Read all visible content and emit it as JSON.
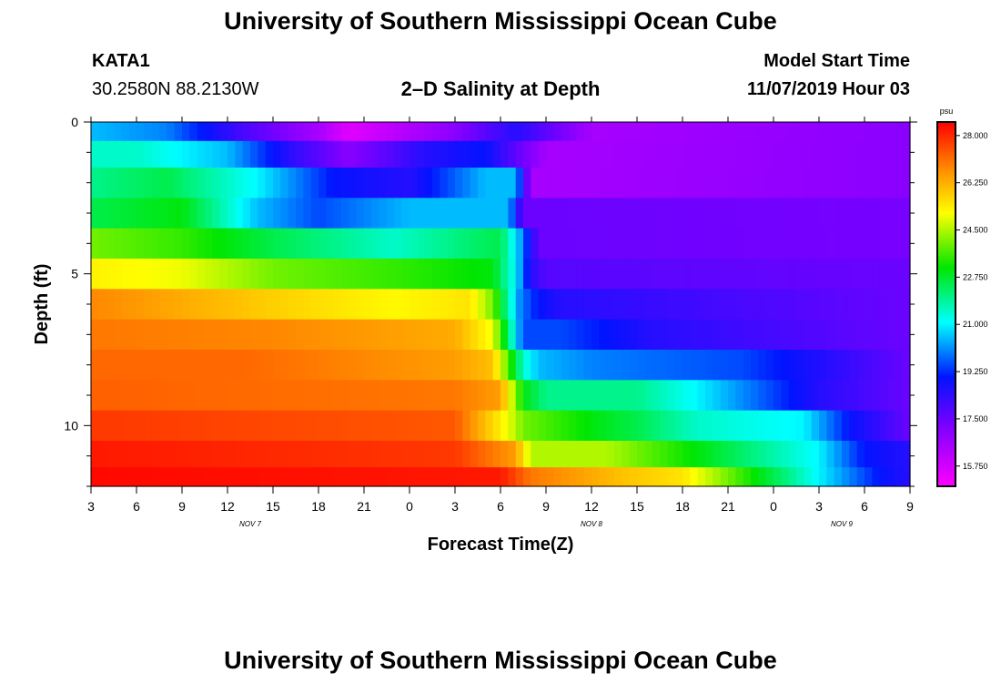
{
  "header": {
    "title": "University of Southern Mississippi Ocean Cube",
    "station": "KATA1",
    "coords": "30.2580N 88.2130W",
    "plot_title": "2–D Salinity at Depth",
    "start_label": "Model Start Time",
    "start_value": "11/07/2019 Hour 03"
  },
  "footer": {
    "title": "University of Southern Mississippi Ocean Cube"
  },
  "chart_data": {
    "type": "heatmap",
    "title": "2–D Salinity at Depth",
    "xlabel": "Forecast Time(Z)",
    "ylabel": "Depth (ft)",
    "x_range_hours": [
      0,
      54
    ],
    "x_tick_labels": [
      "3",
      "6",
      "9",
      "12",
      "15",
      "18",
      "21",
      "0",
      "3",
      "6",
      "9",
      "12",
      "15",
      "18",
      "21",
      "0",
      "3",
      "6",
      "9"
    ],
    "x_date_labels": [
      {
        "label": "NOV 7",
        "hour": 10.5
      },
      {
        "label": "NOV 8",
        "hour": 33
      },
      {
        "label": "NOV 9",
        "hour": 49.5
      }
    ],
    "y_range_ft": [
      0,
      12
    ],
    "y_tick_labels": [
      "0",
      "5",
      "10"
    ],
    "y_ticks_ft": [
      0,
      5,
      10
    ],
    "layer_depths_ft": [
      0.25,
      1,
      2,
      3,
      4,
      5,
      6,
      7,
      8,
      9,
      10,
      11,
      11.75
    ],
    "colorbar": {
      "unit": "psu",
      "min": 15.0,
      "max": 28.5,
      "tick_labels": [
        "28.000",
        "26.250",
        "24.500",
        "22.750",
        "21.000",
        "19.250",
        "17.500",
        "15.750"
      ],
      "tick_values": [
        28.0,
        26.25,
        24.5,
        22.75,
        21.0,
        19.25,
        17.5,
        15.75
      ]
    },
    "series": [
      {
        "name": "0.25 ft",
        "hours": [
          0,
          5,
          10,
          15,
          17,
          24,
          28,
          33,
          54
        ],
        "values": [
          20.5,
          20.0,
          18.0,
          16.5,
          15.5,
          17.0,
          18.5,
          16.5,
          17.0
        ]
      },
      {
        "name": "1 ft",
        "hours": [
          0,
          3,
          9,
          13,
          17,
          22,
          26,
          27.5,
          30,
          54
        ],
        "values": [
          21.5,
          21.5,
          20.5,
          18.5,
          17.0,
          18.5,
          19.0,
          18.0,
          16.5,
          17.0
        ]
      },
      {
        "name": "2 ft",
        "hours": [
          0,
          5,
          11,
          16,
          21,
          26,
          28,
          29,
          54
        ],
        "values": [
          22.0,
          22.5,
          21.0,
          19.0,
          18.5,
          20.5,
          20.5,
          16.5,
          17.0
        ]
      },
      {
        "name": "3 ft",
        "hours": [
          0,
          6,
          11,
          15,
          21,
          27.5,
          28.5,
          54
        ],
        "values": [
          22.5,
          23.0,
          20.5,
          19.5,
          20.5,
          20.5,
          17.5,
          17.3
        ]
      },
      {
        "name": "4 ft",
        "hours": [
          0,
          6,
          12,
          20,
          27,
          28.2,
          29.5,
          54
        ],
        "values": [
          24.0,
          23.5,
          22.5,
          21.5,
          22.5,
          20.5,
          17.5,
          17.3
        ]
      },
      {
        "name": "5 ft",
        "hours": [
          0,
          6,
          12,
          20,
          26.5,
          28,
          29,
          30,
          54
        ],
        "values": [
          25.3,
          25.0,
          24.0,
          23.5,
          23.0,
          21.0,
          18.5,
          17.8,
          17.5
        ]
      },
      {
        "name": "6 ft",
        "hours": [
          0,
          12,
          20,
          25,
          26.5,
          28.3,
          29.5,
          31,
          54
        ],
        "values": [
          26.8,
          25.8,
          25.2,
          25.5,
          24.0,
          20.0,
          19.0,
          18.5,
          17.5
        ]
      },
      {
        "name": "7 ft",
        "hours": [
          0,
          12,
          24,
          26.5,
          28.5,
          31,
          37,
          54
        ],
        "values": [
          27.0,
          26.8,
          26.3,
          25.0,
          19.5,
          19.5,
          18.5,
          17.5
        ]
      },
      {
        "name": "8 ft",
        "hours": [
          0,
          10,
          24,
          26.5,
          28.5,
          29.5,
          33,
          43,
          54
        ],
        "values": [
          27.2,
          27.2,
          26.5,
          26.0,
          21.5,
          20.5,
          20.0,
          19.5,
          17.5
        ]
      },
      {
        "name": "9 ft",
        "hours": [
          0,
          24,
          27,
          28.5,
          30,
          36,
          40,
          48,
          54
        ],
        "values": [
          27.3,
          27.0,
          26.5,
          23.0,
          22.0,
          22.0,
          21.0,
          18.5,
          17.5
        ]
      },
      {
        "name": "10 ft",
        "hours": [
          0,
          24,
          27.5,
          28.5,
          33,
          36,
          40,
          47,
          50,
          54
        ],
        "values": [
          27.8,
          27.4,
          25.0,
          24.0,
          23.0,
          22.5,
          21.5,
          21.0,
          19.0,
          17.5
        ]
      },
      {
        "name": "11 ft",
        "hours": [
          0,
          24,
          28,
          29,
          34,
          40,
          44,
          48,
          51,
          54
        ],
        "values": [
          28.2,
          27.8,
          26.5,
          24.5,
          24.5,
          23.0,
          22.0,
          21.0,
          19.0,
          18.5
        ]
      },
      {
        "name": "11.75 ft",
        "hours": [
          0,
          27,
          29,
          35,
          39,
          43,
          46,
          49,
          52,
          54
        ],
        "values": [
          28.4,
          28.2,
          27.0,
          26.0,
          25.5,
          23.5,
          22.0,
          20.5,
          19.0,
          18.5
        ]
      }
    ]
  }
}
